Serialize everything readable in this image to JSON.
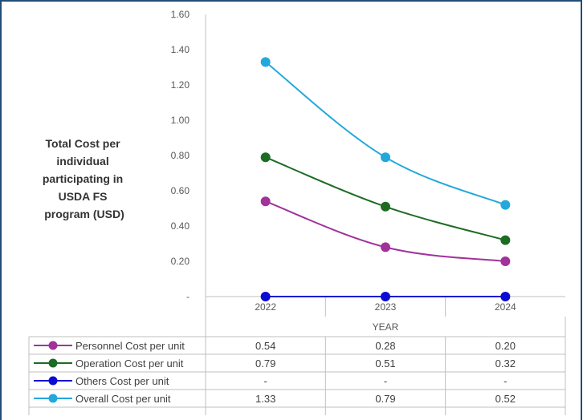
{
  "chart_data": {
    "type": "line",
    "ylabel_lines": [
      "Total Cost per",
      "individual",
      "participating in",
      "USDA FS",
      "program (USD)"
    ],
    "xlabel": "YEAR",
    "categories": [
      "2022",
      "2023",
      "2024"
    ],
    "ylim": [
      0,
      1.6
    ],
    "y_ticks": [
      "-",
      "0.20",
      "0.40",
      "0.60",
      "0.80",
      "1.00",
      "1.20",
      "1.40",
      "1.60"
    ],
    "grid": false,
    "legend": "data-table-below",
    "series": [
      {
        "name": "Personnel Cost per unit",
        "color": "#a0329a",
        "values": [
          0.54,
          0.28,
          0.2
        ],
        "labels": [
          "0.54",
          "0.28",
          "0.20"
        ]
      },
      {
        "name": "Operation Cost per unit",
        "color": "#1e6b24",
        "values": [
          0.79,
          0.51,
          0.32
        ],
        "labels": [
          "0.79",
          "0.51",
          "0.32"
        ]
      },
      {
        "name": "Others Cost per unit",
        "color": "#0b0bd4",
        "values": [
          0,
          0,
          0
        ],
        "labels": [
          "-",
          "-",
          "-"
        ]
      },
      {
        "name": "Overall Cost per unit",
        "color": "#22a8dc",
        "values": [
          1.33,
          0.79,
          0.52
        ],
        "labels": [
          "1.33",
          "0.79",
          "0.52"
        ]
      }
    ]
  }
}
